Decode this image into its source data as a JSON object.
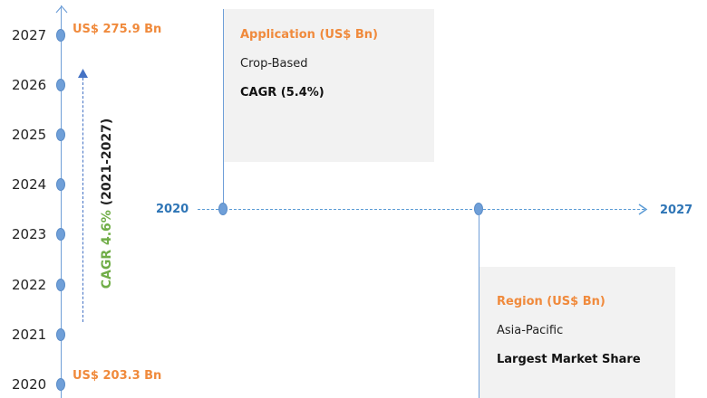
{
  "timeline": {
    "years": [
      "2027",
      "2026",
      "2025",
      "2024",
      "2023",
      "2022",
      "2021",
      "2020"
    ],
    "value_end": "US$ 275.9 Bn",
    "value_start": "US$ 203.3 Bn",
    "cagr_label": "CAGR 4.6%",
    "cagr_period": "(2021-2027)"
  },
  "horizontal": {
    "start_label": "2020",
    "end_label": "2027"
  },
  "application_box": {
    "title": "Application (US$ Bn)",
    "segment": "Crop-Based",
    "note": "CAGR (5.4%)"
  },
  "region_box": {
    "title": "Region (US$ Bn)",
    "segment": "Asia-Pacific",
    "note": "Largest Market Share"
  },
  "colors": {
    "axis": "#6f9fd8",
    "value": "#f08a3c",
    "cagr": "#70ad47",
    "label": "#2e75b6",
    "box": "#f2f2f2"
  }
}
